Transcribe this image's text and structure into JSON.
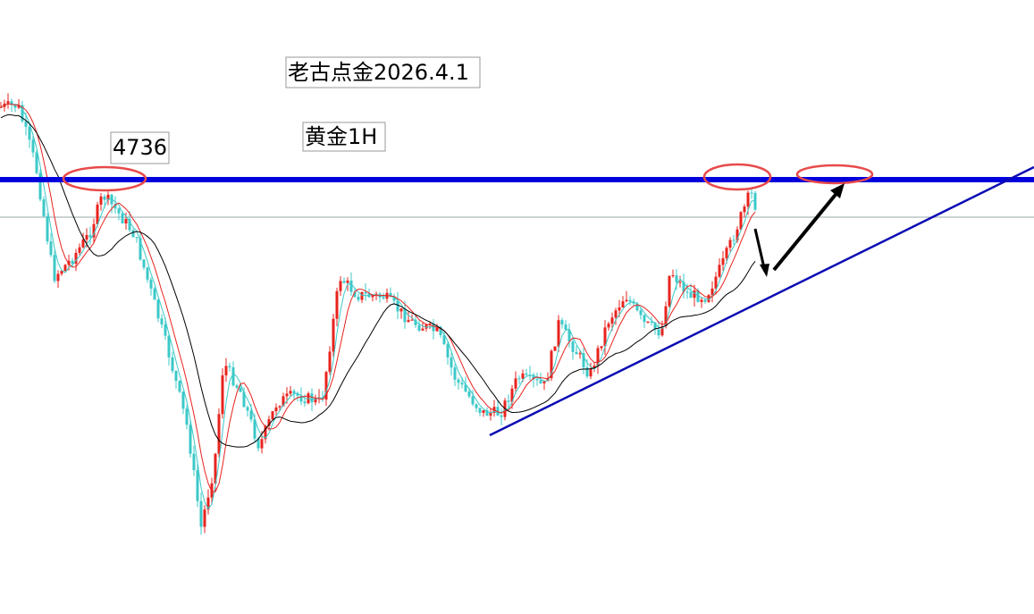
{
  "chart_data": {
    "type": "candlestick",
    "title": "老古点金2026.4.1",
    "subtitle": "黄金1H",
    "annotations": [
      4736
    ],
    "up_color": "#e8231e",
    "down_color": "#3cc8c8"
  }
}
